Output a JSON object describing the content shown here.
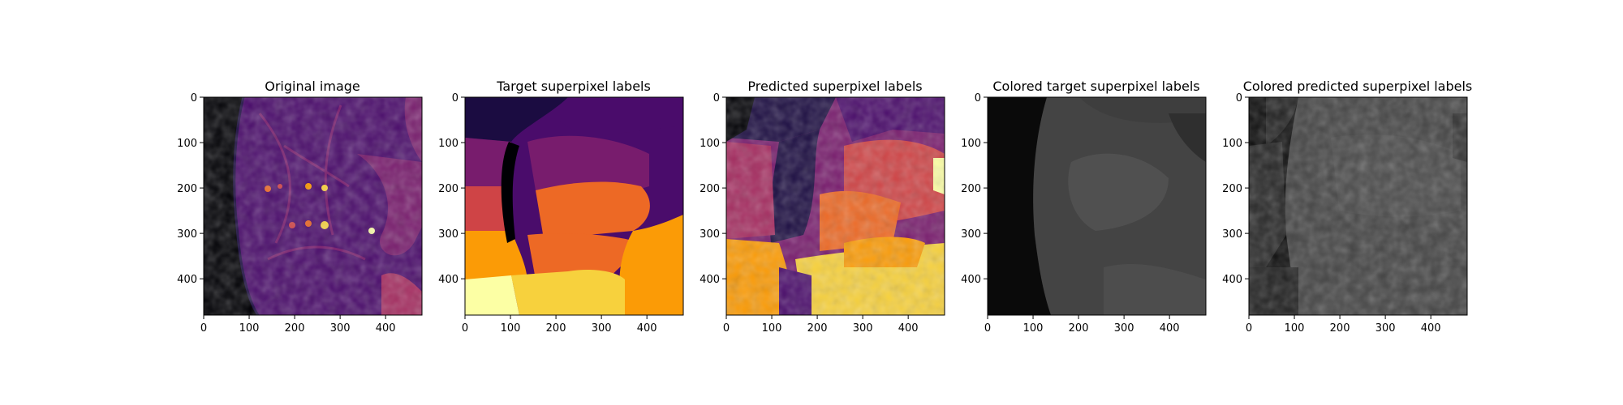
{
  "panels": [
    {
      "title": "Original image",
      "colormap": "inferno",
      "content": "grayscale MRI slice (axial pelvis) rendered with inferno colormap"
    },
    {
      "title": "Target superpixel labels",
      "colormap": "inferno",
      "content": "large smooth superpixel regions"
    },
    {
      "title": "Predicted superpixel labels",
      "colormap": "inferno",
      "content": "noisier predicted superpixel regions"
    },
    {
      "title": "Colored target superpixel labels",
      "colormap": "gray",
      "content": "target regions filled with mean gray intensity"
    },
    {
      "title": "Colored predicted superpixel labels",
      "colormap": "gray",
      "content": "predicted regions filled with mean gray intensity"
    }
  ],
  "axes": {
    "x_ticks": [
      "0",
      "100",
      "200",
      "300",
      "400"
    ],
    "y_ticks": [
      "0",
      "100",
      "200",
      "300",
      "400"
    ]
  },
  "colors": {
    "inferno": [
      "#000004",
      "#1b0c41",
      "#4a0c6b",
      "#781c6d",
      "#a52c60",
      "#cf4446",
      "#ed6925",
      "#fb9b06",
      "#f7d13d",
      "#fcffa4"
    ],
    "gray_dark": "#0a0a0a",
    "gray_mid": "#4a4a4a"
  }
}
